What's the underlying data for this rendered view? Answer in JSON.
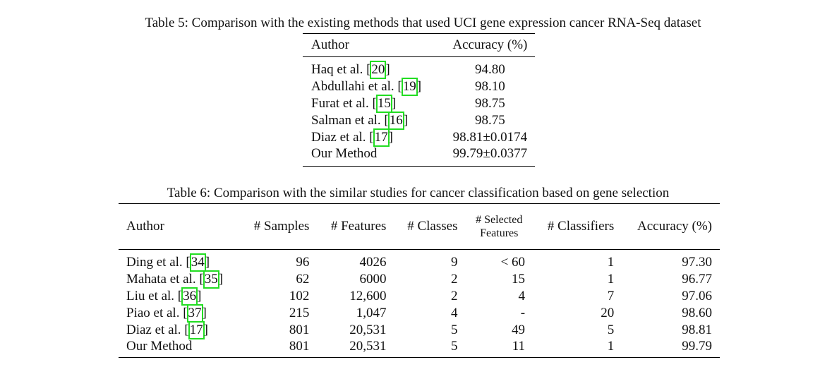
{
  "table5": {
    "caption": "Table 5: Comparison with the existing methods that used UCI gene expression cancer RNA-Seq dataset",
    "headers": [
      "Author",
      "Accuracy (%)"
    ],
    "rows": [
      {
        "author": "Haq et al. [",
        "cite": "20",
        "close": "]",
        "accuracy": "94.80"
      },
      {
        "author": "Abdullahi et al. [",
        "cite": "19",
        "close": "]",
        "accuracy": "98.10"
      },
      {
        "author": "Furat et al. [",
        "cite": "15",
        "close": "]",
        "accuracy": "98.75"
      },
      {
        "author": "Salman et al. [",
        "cite": "16",
        "close": "]",
        "accuracy": "98.75"
      },
      {
        "author": "Diaz et al. [",
        "cite": "17",
        "close": "]",
        "accuracy": "98.81±0.0174"
      },
      {
        "author": "Our Method",
        "cite": "",
        "close": "",
        "accuracy": "99.79±0.0377"
      }
    ]
  },
  "table6": {
    "caption": "Table 6: Comparison with the similar studies for cancer classification based on gene selection",
    "headers": [
      "Author",
      "# Samples",
      "# Features",
      "# Classes",
      "# Selected",
      "Features",
      "# Classifiers",
      "Accuracy (%)"
    ],
    "rows": [
      {
        "author": "Ding et al. [",
        "cite": "34",
        "close": "]",
        "samples": "96",
        "features": "4026",
        "classes": "9",
        "selected": "< 60",
        "classifiers": "1",
        "accuracy": "97.30"
      },
      {
        "author": "Mahata et al. [",
        "cite": "35",
        "close": "]",
        "samples": "62",
        "features": "6000",
        "classes": "2",
        "selected": "15",
        "classifiers": "1",
        "accuracy": "96.77"
      },
      {
        "author": "Liu et al. [",
        "cite": "36",
        "close": "]",
        "samples": "102",
        "features": "12,600",
        "classes": "2",
        "selected": "4",
        "classifiers": "7",
        "accuracy": "97.06"
      },
      {
        "author": "Piao et al. [",
        "cite": "37",
        "close": "]",
        "samples": "215",
        "features": "1,047",
        "classes": "4",
        "selected": "-",
        "classifiers": "20",
        "accuracy": "98.60"
      },
      {
        "author": "Diaz et al. [",
        "cite": "17",
        "close": "]",
        "samples": "801",
        "features": "20,531",
        "classes": "5",
        "selected": "49",
        "classifiers": "5",
        "accuracy": "98.81"
      },
      {
        "author": "Our Method",
        "cite": "",
        "close": "",
        "samples": "801",
        "features": "20,531",
        "classes": "5",
        "selected": "11",
        "classifiers": "1",
        "accuracy": "99.79"
      }
    ]
  }
}
